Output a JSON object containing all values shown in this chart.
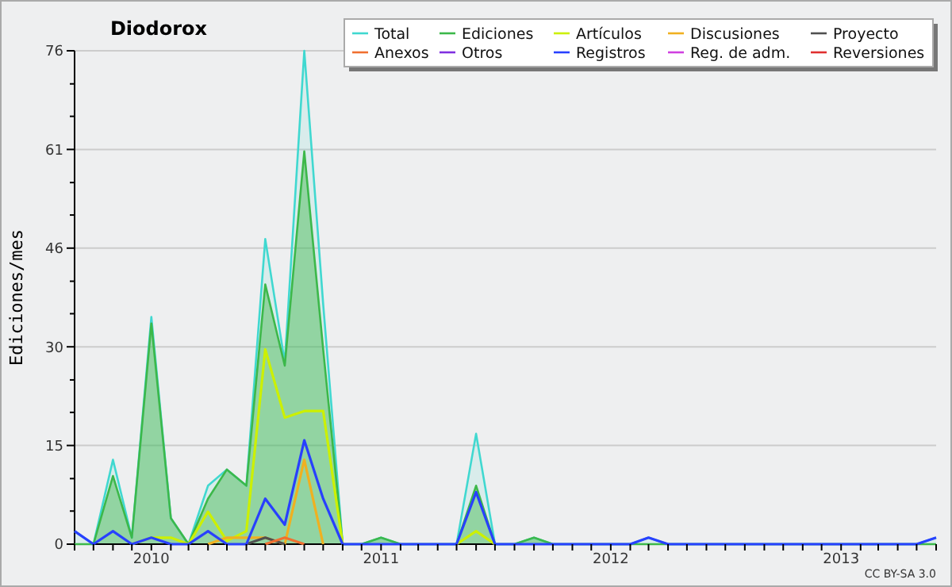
{
  "chart_data": {
    "type": "line",
    "title": "Diodorox",
    "ylabel": "Ediciones/mes",
    "annotations": [
      "CC BY-SA 3.0"
    ],
    "x": [
      "2009-09",
      "2009-10",
      "2009-11",
      "2009-12",
      "2010-01",
      "2010-02",
      "2010-03",
      "2010-04",
      "2010-05",
      "2010-06",
      "2010-07",
      "2010-08",
      "2010-09",
      "2010-10",
      "2010-11",
      "2010-12",
      "2011-01",
      "2011-02",
      "2011-03",
      "2011-04",
      "2011-05",
      "2011-06",
      "2011-07",
      "2011-08",
      "2011-09",
      "2011-10",
      "2011-11",
      "2011-12",
      "2012-01",
      "2012-02",
      "2012-03",
      "2012-04",
      "2012-05",
      "2012-06",
      "2012-07",
      "2012-08",
      "2012-09",
      "2012-10",
      "2012-11",
      "2012-12",
      "2013-01",
      "2013-02",
      "2013-03",
      "2013-04",
      "2013-05",
      "2013-06"
    ],
    "series": [
      {
        "name": "Total",
        "color": "#40d8d0",
        "type": "area",
        "values": [
          2,
          0,
          13,
          1,
          35,
          4,
          0,
          9,
          11.5,
          9,
          47,
          28,
          76,
          37,
          0,
          0,
          1,
          0,
          0,
          0,
          0,
          17,
          0,
          0,
          1,
          0,
          0,
          0,
          0,
          0,
          1,
          0,
          0,
          0,
          0,
          0,
          0,
          0,
          0,
          0,
          0,
          0,
          0,
          0,
          0,
          1
        ]
      },
      {
        "name": "Ediciones",
        "color": "#3cb84a",
        "type": "area",
        "values": [
          0,
          0,
          10.5,
          1,
          34,
          4,
          0,
          7,
          11.5,
          9,
          40,
          27.5,
          60.5,
          30,
          0,
          0,
          1,
          0,
          0,
          0,
          0,
          9,
          0,
          0,
          1,
          0,
          0,
          0,
          0,
          0,
          0,
          0,
          0,
          0,
          0,
          0,
          0,
          0,
          0,
          0,
          0,
          0,
          0,
          0,
          0,
          0
        ]
      },
      {
        "name": "Artículos",
        "color": "#ccf000",
        "values": [
          null,
          null,
          null,
          0,
          1,
          1,
          0,
          5,
          0.5,
          2,
          30,
          19.5,
          20.5,
          20.5,
          0,
          null,
          null,
          null,
          null,
          null,
          0,
          2,
          0,
          null,
          null,
          null,
          null,
          null,
          null,
          null,
          null,
          null,
          null,
          null,
          null,
          null,
          null,
          null,
          null,
          null,
          null,
          null,
          null,
          null,
          null,
          null
        ]
      },
      {
        "name": "Discusiones",
        "color": "#f0b020",
        "values": [
          null,
          null,
          null,
          null,
          null,
          null,
          null,
          0,
          1,
          1,
          1,
          0,
          13,
          0,
          null,
          null,
          null,
          null,
          null,
          null,
          null,
          null,
          null,
          null,
          null,
          null,
          null,
          null,
          null,
          null,
          null,
          null,
          null,
          null,
          null,
          null,
          null,
          null,
          null,
          null,
          null,
          null,
          null,
          null,
          null,
          null
        ]
      },
      {
        "name": "Proyecto",
        "color": "#505050",
        "values": [
          null,
          null,
          null,
          null,
          null,
          null,
          null,
          null,
          null,
          0,
          1,
          0,
          null,
          null,
          null,
          null,
          null,
          null,
          null,
          null,
          null,
          null,
          null,
          null,
          null,
          null,
          null,
          null,
          null,
          null,
          null,
          null,
          null,
          null,
          null,
          null,
          null,
          null,
          null,
          null,
          null,
          null,
          null,
          null,
          null,
          null
        ]
      },
      {
        "name": "Anexos",
        "color": "#f07030",
        "values": [
          null,
          null,
          null,
          null,
          null,
          null,
          null,
          null,
          null,
          null,
          0,
          1,
          0,
          null,
          null,
          null,
          null,
          null,
          null,
          null,
          null,
          null,
          null,
          null,
          null,
          null,
          null,
          null,
          null,
          null,
          null,
          null,
          null,
          null,
          null,
          null,
          null,
          null,
          null,
          null,
          null,
          null,
          null,
          null,
          null,
          null
        ]
      },
      {
        "name": "Otros",
        "color": "#8030e0",
        "values": [
          null,
          null,
          null,
          null,
          null,
          null,
          null,
          null,
          null,
          null,
          null,
          null,
          null,
          null,
          null,
          null,
          null,
          null,
          null,
          null,
          null,
          null,
          null,
          null,
          null,
          null,
          null,
          null,
          null,
          null,
          null,
          null,
          null,
          null,
          null,
          null,
          null,
          null,
          null,
          null,
          null,
          null,
          null,
          null,
          null,
          null
        ]
      },
      {
        "name": "Registros",
        "color": "#2840ff",
        "values": [
          2,
          0,
          2,
          0,
          1,
          0,
          0,
          2,
          0,
          0,
          7,
          3,
          16,
          7,
          0,
          0,
          0,
          0,
          0,
          0,
          0,
          8,
          0,
          0,
          0,
          0,
          0,
          0,
          0,
          0,
          1,
          0,
          0,
          0,
          0,
          0,
          0,
          0,
          0,
          0,
          0,
          0,
          0,
          0,
          0,
          1
        ]
      },
      {
        "name": "Reg. de adm.",
        "color": "#d040e0",
        "values": [
          null,
          null,
          null,
          null,
          null,
          null,
          null,
          null,
          null,
          null,
          null,
          null,
          null,
          null,
          null,
          null,
          null,
          null,
          null,
          null,
          null,
          null,
          null,
          null,
          null,
          null,
          null,
          null,
          null,
          null,
          null,
          null,
          null,
          null,
          null,
          null,
          null,
          null,
          null,
          null,
          null,
          null,
          null,
          null,
          null,
          null
        ]
      },
      {
        "name": "Reversiones",
        "color": "#e03030",
        "values": [
          null,
          null,
          null,
          null,
          null,
          null,
          null,
          null,
          null,
          null,
          null,
          null,
          null,
          null,
          null,
          null,
          null,
          null,
          null,
          null,
          null,
          null,
          null,
          null,
          null,
          null,
          null,
          null,
          null,
          null,
          null,
          null,
          null,
          null,
          null,
          null,
          null,
          null,
          null,
          null,
          null,
          null,
          null,
          null,
          null,
          null
        ]
      }
    ],
    "xlim": [
      "2009-09",
      "2013-06"
    ],
    "xticks": [
      {
        "value": "2009-09",
        "label": null
      },
      {
        "value": "2009-10",
        "label": null
      },
      {
        "value": "2009-11",
        "label": null
      },
      {
        "value": "2009-12",
        "label": null
      },
      {
        "value": "2010-01",
        "label": "2010"
      },
      {
        "value": "2010-02",
        "label": null
      },
      {
        "value": "2010-03",
        "label": null
      },
      {
        "value": "2010-04",
        "label": null
      },
      {
        "value": "2010-05",
        "label": null
      },
      {
        "value": "2010-06",
        "label": null
      },
      {
        "value": "2010-07",
        "label": null
      },
      {
        "value": "2010-08",
        "label": null
      },
      {
        "value": "2010-09",
        "label": null
      },
      {
        "value": "2010-10",
        "label": null
      },
      {
        "value": "2010-11",
        "label": null
      },
      {
        "value": "2010-12",
        "label": null
      },
      {
        "value": "2011-01",
        "label": "2011"
      },
      {
        "value": "2011-02",
        "label": null
      },
      {
        "value": "2011-03",
        "label": null
      },
      {
        "value": "2011-04",
        "label": null
      },
      {
        "value": "2011-05",
        "label": null
      },
      {
        "value": "2011-06",
        "label": null
      },
      {
        "value": "2011-07",
        "label": null
      },
      {
        "value": "2011-08",
        "label": null
      },
      {
        "value": "2011-09",
        "label": null
      },
      {
        "value": "2011-10",
        "label": null
      },
      {
        "value": "2011-11",
        "label": null
      },
      {
        "value": "2011-12",
        "label": null
      },
      {
        "value": "2012-01",
        "label": "2012"
      },
      {
        "value": "2012-02",
        "label": null
      },
      {
        "value": "2012-03",
        "label": null
      },
      {
        "value": "2012-04",
        "label": null
      },
      {
        "value": "2012-05",
        "label": null
      },
      {
        "value": "2012-06",
        "label": null
      },
      {
        "value": "2012-07",
        "label": null
      },
      {
        "value": "2012-08",
        "label": null
      },
      {
        "value": "2012-09",
        "label": null
      },
      {
        "value": "2012-10",
        "label": null
      },
      {
        "value": "2012-11",
        "label": null
      },
      {
        "value": "2012-12",
        "label": null
      },
      {
        "value": "2013-01",
        "label": "2013"
      },
      {
        "value": "2013-02",
        "label": null
      },
      {
        "value": "2013-03",
        "label": null
      },
      {
        "value": "2013-04",
        "label": null
      },
      {
        "value": "2013-05",
        "label": null
      },
      {
        "value": "2013-06",
        "label": null
      }
    ],
    "ylim": [
      0,
      76
    ],
    "yticks": [
      0,
      {
        "value": 5.1,
        "label": null
      },
      {
        "value": 10.1,
        "label": null
      },
      {
        "value": 15.2,
        "label": "15"
      },
      {
        "value": 20.3,
        "label": null
      },
      {
        "value": 25.3,
        "label": null
      },
      {
        "value": 30.4,
        "label": "30"
      },
      {
        "value": 35.5,
        "label": null
      },
      {
        "value": 40.5,
        "label": null
      },
      {
        "value": 45.6,
        "label": "46"
      },
      {
        "value": 50.7,
        "label": null
      },
      {
        "value": 55.7,
        "label": null
      },
      {
        "value": 60.8,
        "label": "61"
      },
      {
        "value": 65.9,
        "label": null
      },
      {
        "value": 70.9,
        "label": null
      },
      76
    ],
    "grid": "y",
    "legend": "top right"
  }
}
